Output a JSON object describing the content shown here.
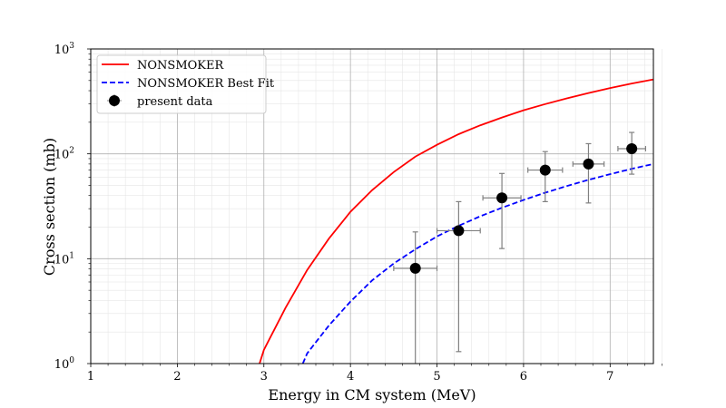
{
  "chart_data": {
    "type": "line",
    "xlabel": "Energy in CM system (MeV)",
    "ylabel": "Cross section (mb)",
    "xlim": [
      1,
      7.5
    ],
    "ylim": [
      1,
      1000
    ],
    "yscale": "log",
    "grid": "major and minor",
    "legend_position": "top-left",
    "x_ticks": [
      "1",
      "2",
      "3",
      "4",
      "5",
      "6",
      "7"
    ],
    "y_ticks": [
      {
        "value": 1,
        "base": "10",
        "exp": "0"
      },
      {
        "value": 10,
        "base": "10",
        "exp": "1"
      },
      {
        "value": 100,
        "base": "10",
        "exp": "2"
      },
      {
        "value": 1000,
        "base": "10",
        "exp": "3"
      }
    ],
    "series": [
      {
        "name": "NONSMOKER",
        "style": "solid",
        "color": "#ff0000",
        "x": [
          2.95,
          3.0,
          3.25,
          3.5,
          3.75,
          4.0,
          4.25,
          4.5,
          4.75,
          5.0,
          5.25,
          5.5,
          5.75,
          6.0,
          6.25,
          6.5,
          6.75,
          7.0,
          7.25,
          7.5
        ],
        "y": [
          1.0,
          1.35,
          3.4,
          7.8,
          15.5,
          28,
          45,
          67,
          94,
          122,
          154,
          187,
          222,
          260,
          298,
          338,
          380,
          424,
          468,
          512
        ]
      },
      {
        "name": "NONSMOKER Best Fit",
        "style": "dashed",
        "color": "#0000ff",
        "x": [
          3.45,
          3.5,
          3.75,
          4.0,
          4.25,
          4.5,
          4.75,
          5.0,
          5.25,
          5.5,
          5.75,
          6.0,
          6.25,
          6.5,
          6.75,
          7.0,
          7.25,
          7.5
        ],
        "y": [
          1.0,
          1.25,
          2.3,
          3.9,
          6.2,
          9.0,
          12.3,
          16.3,
          20.6,
          25.4,
          30.6,
          36.3,
          42.6,
          49.3,
          56.5,
          64.0,
          72.0,
          80.0
        ]
      },
      {
        "name": "present data",
        "style": "markers",
        "color": "#000000",
        "points": [
          {
            "x": 4.75,
            "y": 8.1,
            "xerr": 0.25,
            "ylow": 0.5,
            "yhigh": 18
          },
          {
            "x": 5.25,
            "y": 18.5,
            "xerr": 0.25,
            "ylow": 1.3,
            "yhigh": 35
          },
          {
            "x": 5.75,
            "y": 38,
            "xerr": 0.22,
            "ylow": 12.5,
            "yhigh": 65
          },
          {
            "x": 6.25,
            "y": 70,
            "xerr": 0.2,
            "ylow": 35,
            "yhigh": 105
          },
          {
            "x": 6.75,
            "y": 80,
            "xerr": 0.18,
            "ylow": 34,
            "yhigh": 125
          },
          {
            "x": 7.25,
            "y": 112,
            "xerr": 0.16,
            "ylow": 64,
            "yhigh": 160
          }
        ]
      }
    ]
  }
}
